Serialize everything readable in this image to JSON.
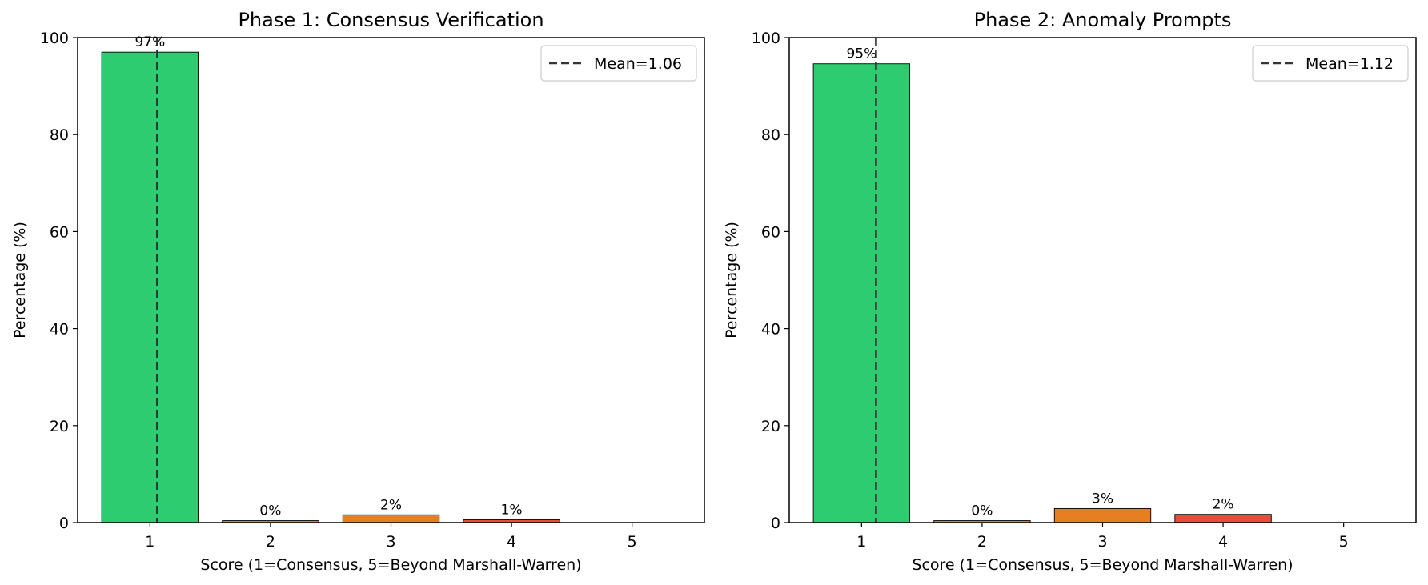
{
  "chart_data": [
    {
      "type": "bar",
      "title": "Phase 1: Consensus Verification",
      "xlabel": "Score (1=Consensus, 5=Beyond Marshall-Warren)",
      "ylabel": "Percentage (%)",
      "categories": [
        "1",
        "2",
        "3",
        "4",
        "5"
      ],
      "values": [
        97.0,
        0.4,
        1.6,
        0.6,
        0
      ],
      "data_labels": [
        "97%",
        "0%",
        "2%",
        "1%",
        ""
      ],
      "bar_colors": [
        "#2ecc71",
        "#e67e22",
        "#e67e22",
        "#e74c3c",
        "#c0392b"
      ],
      "ylim": [
        0,
        100
      ],
      "yticks": [
        "0",
        "20",
        "40",
        "60",
        "80",
        "100"
      ],
      "mean": 1.06,
      "mean_label": "Mean=1.06",
      "legend_position": "top-right",
      "grid": false
    },
    {
      "type": "bar",
      "title": "Phase 2: Anomaly Prompts",
      "xlabel": "Score (1=Consensus, 5=Beyond Marshall-Warren)",
      "ylabel": "Percentage (%)",
      "categories": [
        "1",
        "2",
        "3",
        "4",
        "5"
      ],
      "values": [
        94.6,
        0.4,
        2.9,
        1.7,
        0
      ],
      "data_labels": [
        "95%",
        "0%",
        "3%",
        "2%",
        ""
      ],
      "bar_colors": [
        "#2ecc71",
        "#e67e22",
        "#e67e22",
        "#e74c3c",
        "#c0392b"
      ],
      "ylim": [
        0,
        100
      ],
      "yticks": [
        "0",
        "20",
        "40",
        "60",
        "80",
        "100"
      ],
      "mean": 1.12,
      "mean_label": "Mean=1.12",
      "legend_position": "top-right",
      "grid": false
    }
  ]
}
